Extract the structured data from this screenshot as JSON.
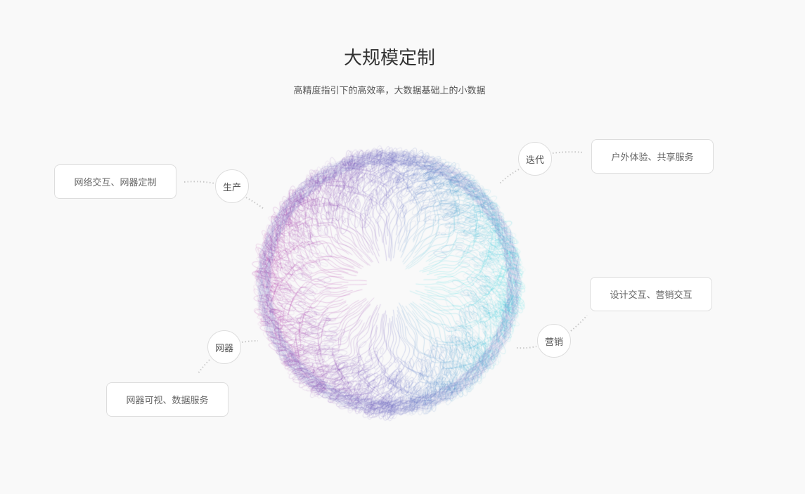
{
  "header": {
    "title": "大规模定制",
    "subtitle": "高精度指引下的高效率，大数据基础上的小数据"
  },
  "nodes": [
    {
      "label": "生产",
      "feature": "网络交互、网器定制"
    },
    {
      "label": "迭代",
      "feature": "户外体验、共享服务"
    },
    {
      "label": "营销",
      "feature": "设计交互、营销交互"
    },
    {
      "label": "网器",
      "feature": "网器可视、数据服务"
    }
  ],
  "colors": {
    "left": "#b03aa8",
    "right": "#3cd6e0",
    "edge": "#5a4fb8",
    "text": "#666666",
    "line": "#cccccc"
  }
}
